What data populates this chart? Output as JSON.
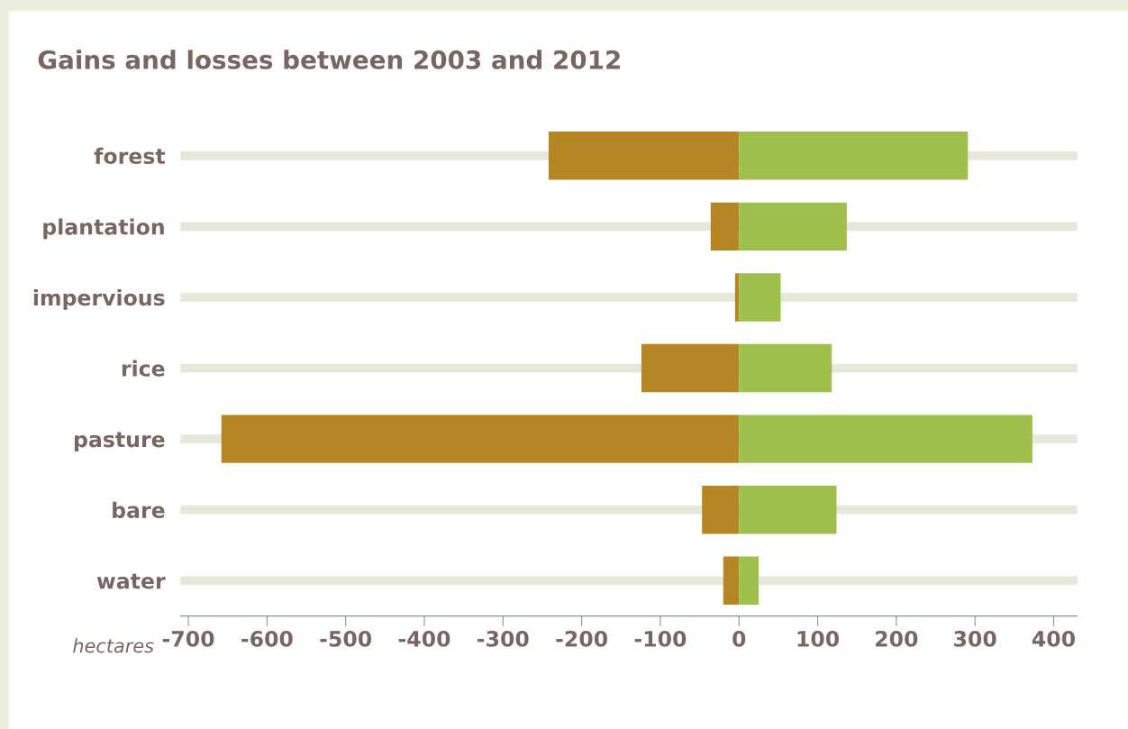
{
  "chart_data": {
    "type": "bar",
    "orientation": "horizontal",
    "title": "Gains and losses between 2003 and 2012",
    "xlabel": "hectares",
    "categories": [
      "forest",
      "plantation",
      "impervious",
      "rice",
      "pasture",
      "bare",
      "water"
    ],
    "series": [
      {
        "color": "#b58624",
        "values": [
          -242,
          -36,
          -5,
          -124,
          -658,
          -47,
          -20
        ]
      },
      {
        "color": "#9fc04c",
        "values": [
          291,
          137,
          53,
          118,
          373,
          124,
          25
        ]
      }
    ],
    "xlim": [
      -710,
      430
    ],
    "xticks": [
      -700,
      -600,
      -500,
      -400,
      -300,
      -200,
      -100,
      0,
      100,
      200,
      300,
      400
    ],
    "stacked": true,
    "grid": "y",
    "legend": false
  }
}
